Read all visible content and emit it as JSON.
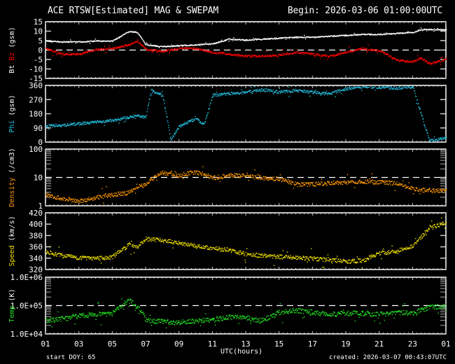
{
  "header": {
    "title": "ACE RTSW[Estimated] MAG & SWEPAM",
    "begin": "Begin: 2026-03-06 01:00:00UTC"
  },
  "footer": {
    "xlabel": "UTC(hours)",
    "start_doy": "start DOY:  65",
    "created": "created: 2026-03-07 00:43:07UTC"
  },
  "colors": {
    "bt": "#ffffff",
    "bz": "#ff0000",
    "phi": "#22c0e0",
    "density": "#ff9900",
    "speed": "#f0e000",
    "temp": "#22e022",
    "axis": "#ffffff",
    "background": "#000000"
  },
  "chart_data": [
    {
      "type": "scatter",
      "panel": "mag",
      "title": "ACE RTSW[Estimated] MAG & SWEPAM",
      "ylabel": "Bt Bz (gsm)",
      "ylim": [
        -15,
        15
      ],
      "yticks": [
        "15",
        "10",
        "5",
        "0",
        "-5",
        "-10",
        "-15"
      ],
      "reference_line": 0,
      "xticks": [
        "01",
        "03",
        "05",
        "07",
        "09",
        "11",
        "13",
        "15",
        "17",
        "19",
        "21",
        "23",
        "01"
      ],
      "xlabel": "UTC(hours)",
      "x": [
        0,
        1,
        2,
        3,
        4,
        5,
        5.5,
        6,
        7,
        8,
        9,
        10,
        11,
        12,
        13,
        14,
        15,
        16,
        17,
        18,
        19,
        20,
        21,
        22,
        22.5,
        23,
        24
      ],
      "series": [
        {
          "name": "Bt",
          "values": [
            5,
            4.5,
            4.5,
            5,
            5,
            10,
            9.5,
            3,
            2,
            2.5,
            3,
            3.5,
            6,
            5.5,
            6,
            6.5,
            7,
            7,
            7.5,
            8,
            8.5,
            8.5,
            9,
            9.5,
            11,
            11,
            11
          ]
        },
        {
          "name": "Bz",
          "values": [
            1,
            -2,
            -2,
            0.5,
            1,
            3,
            5,
            0.5,
            -0.5,
            1,
            1,
            -1,
            -2,
            -3,
            -3,
            -2.5,
            -1,
            -2,
            -3,
            -1,
            1,
            0,
            -5,
            -6,
            -4,
            -7,
            -5
          ]
        }
      ]
    },
    {
      "type": "scatter",
      "panel": "phi",
      "ylabel": "Phi (gsm)",
      "ylim": [
        0,
        360
      ],
      "yticks": [
        "360",
        "270",
        "180",
        "90",
        "0"
      ],
      "x": [
        0,
        1,
        2,
        3,
        4,
        5,
        5.5,
        6,
        6.3,
        7,
        7.5,
        8,
        8.5,
        9,
        9.5,
        10,
        11,
        12,
        13,
        14,
        15,
        16,
        17,
        18,
        19,
        20,
        21,
        22,
        23,
        24
      ],
      "values": [
        105,
        110,
        120,
        130,
        140,
        160,
        170,
        160,
        330,
        300,
        20,
        100,
        130,
        150,
        115,
        300,
        310,
        320,
        335,
        320,
        330,
        320,
        310,
        340,
        355,
        350,
        345,
        355,
        10,
        30
      ]
    },
    {
      "type": "scatter",
      "panel": "density",
      "ylabel": "Density (/cm3)",
      "ylim": [
        1,
        100
      ],
      "yscale": "log",
      "yticks": [
        "100",
        "10",
        "1"
      ],
      "reference_line": 10,
      "x": [
        0,
        1,
        2,
        3,
        4,
        5,
        5.5,
        6,
        7,
        8,
        9,
        10,
        11,
        12,
        13,
        14,
        15,
        16,
        17,
        18,
        19,
        20,
        21,
        22,
        23,
        24
      ],
      "values": [
        2.5,
        1.8,
        1.5,
        2,
        2.5,
        3,
        5,
        5.5,
        15,
        12,
        16,
        10,
        12,
        13,
        10,
        9,
        6,
        6,
        6.5,
        7,
        7.5,
        7,
        6.5,
        4,
        3.5,
        3.5
      ]
    },
    {
      "type": "scatter",
      "panel": "speed",
      "ylabel": "Speed (km/s)",
      "ylim": [
        320,
        420
      ],
      "yticks": [
        "420",
        "400",
        "380",
        "360",
        "340",
        "320"
      ],
      "x": [
        0,
        1,
        2,
        3,
        4,
        5,
        5.5,
        6,
        7,
        8,
        9,
        10,
        11,
        12,
        13,
        14,
        15,
        16,
        17,
        18,
        19,
        20,
        21,
        22,
        22.5,
        23,
        24
      ],
      "values": [
        352,
        345,
        342,
        340,
        343,
        365,
        360,
        375,
        372,
        368,
        362,
        358,
        355,
        348,
        345,
        343,
        342,
        340,
        338,
        335,
        336,
        350,
        352,
        362,
        378,
        395,
        402
      ]
    },
    {
      "type": "scatter",
      "panel": "temp",
      "ylabel": "Temp (K)",
      "ylim": [
        10000,
        1000000
      ],
      "yscale": "log",
      "yticks": [
        "1.0E+06",
        "1.0E+05",
        "1.0E+04"
      ],
      "reference_line": 100000,
      "x": [
        0,
        1,
        2,
        3,
        4,
        5,
        5.5,
        6,
        7,
        8,
        9,
        10,
        11,
        12,
        13,
        14,
        15,
        16,
        17,
        18,
        19,
        20,
        21,
        22,
        23,
        24
      ],
      "values": [
        30000,
        35000,
        45000,
        50000,
        55000,
        150000,
        90000,
        30000,
        28000,
        26000,
        30000,
        32000,
        40000,
        38000,
        30000,
        60000,
        70000,
        60000,
        50000,
        55000,
        55000,
        50000,
        60000,
        55000,
        90000,
        100000
      ]
    }
  ]
}
